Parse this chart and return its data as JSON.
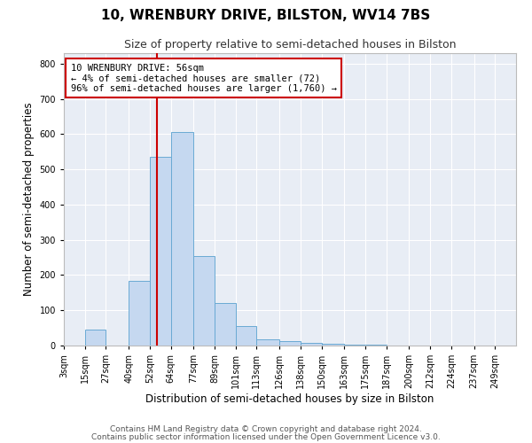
{
  "title": "10, WRENBURY DRIVE, BILSTON, WV14 7BS",
  "subtitle": "Size of property relative to semi-detached houses in Bilston",
  "xlabel": "Distribution of semi-detached houses by size in Bilston",
  "ylabel": "Number of semi-detached properties",
  "footer1": "Contains HM Land Registry data © Crown copyright and database right 2024.",
  "footer2": "Contains public sector information licensed under the Open Government Licence v3.0.",
  "annotation_line1": "10 WRENBURY DRIVE: 56sqm",
  "annotation_line2": "← 4% of semi-detached houses are smaller (72)",
  "annotation_line3": "96% of semi-detached houses are larger (1,760) →",
  "bar_color": "#c5d8f0",
  "bar_edge_color": "#6aaad4",
  "property_line_color": "#cc0000",
  "property_size_sqm": 56,
  "bin_edges": [
    3,
    15,
    27,
    40,
    52,
    64,
    77,
    89,
    101,
    113,
    126,
    138,
    150,
    163,
    175,
    187,
    200,
    212,
    224,
    237,
    249,
    261
  ],
  "bin_labels": [
    "3sqm",
    "15sqm",
    "27sqm",
    "40sqm",
    "52sqm",
    "64sqm",
    "77sqm",
    "89sqm",
    "101sqm",
    "113sqm",
    "126sqm",
    "138sqm",
    "150sqm",
    "163sqm",
    "175sqm",
    "187sqm",
    "200sqm",
    "212sqm",
    "224sqm",
    "237sqm",
    "249sqm"
  ],
  "bar_heights": [
    0,
    45,
    0,
    183,
    535,
    605,
    255,
    120,
    55,
    18,
    12,
    8,
    5,
    3,
    2,
    1,
    1,
    0,
    0,
    1,
    0
  ],
  "ylim": [
    0,
    830
  ],
  "yticks": [
    0,
    100,
    200,
    300,
    400,
    500,
    600,
    700,
    800
  ],
  "background_color": "#ffffff",
  "plot_bg_color": "#e8edf5",
  "grid_color": "#ffffff",
  "title_fontsize": 11,
  "subtitle_fontsize": 9,
  "axis_label_fontsize": 8.5,
  "tick_fontsize": 7,
  "annotation_fontsize": 7.5,
  "footer_fontsize": 6.5
}
